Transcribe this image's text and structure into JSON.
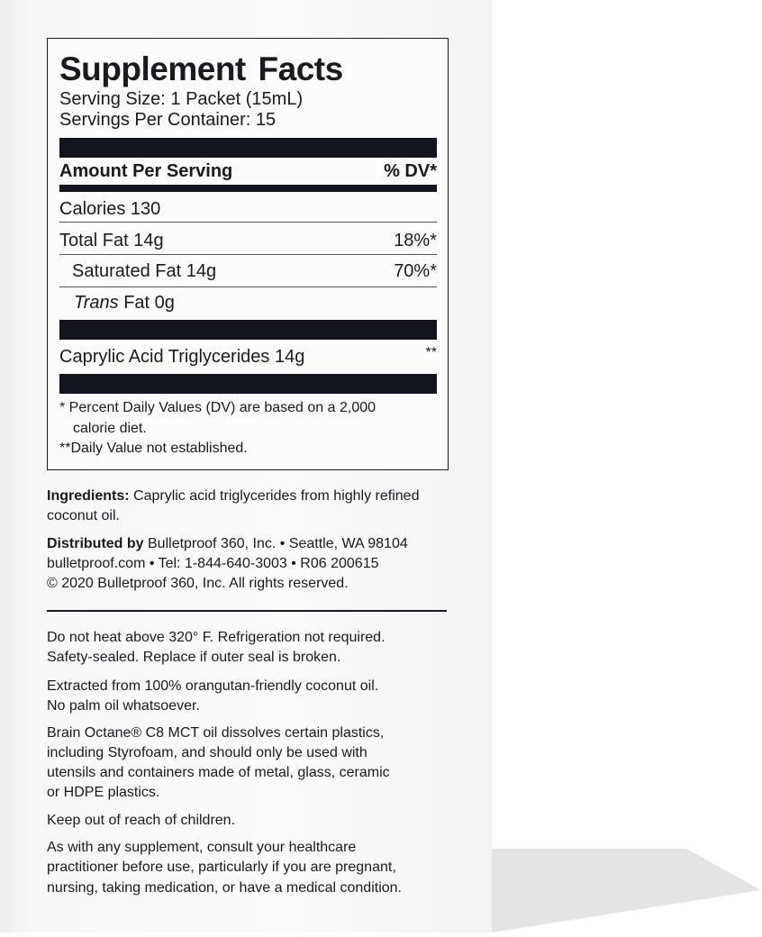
{
  "facts": {
    "title": "Supplement Facts",
    "serving_size": "Serving Size: 1 Packet (15mL)",
    "servings_per_container": "Servings Per Container: 15",
    "amount_header": "Amount Per Serving",
    "dv_header": "% DV*",
    "rows": [
      {
        "label": "Calories 130",
        "dv": ""
      },
      {
        "label": "Total Fat 14g",
        "dv": "18%*"
      },
      {
        "label": "Saturated Fat 14g",
        "dv": "70%*"
      },
      {
        "label_italic": "Trans",
        "label": " Fat 0g",
        "dv": ""
      },
      {
        "label": "Caprylic Acid Triglycerides 14g",
        "dv": "**"
      }
    ],
    "footnote_1a": "*  Percent Daily Values (DV) are based on a 2,000",
    "footnote_1b": "calorie diet.",
    "footnote_2": "**Daily Value not established."
  },
  "ingredients": {
    "label": "Ingredients:",
    "line1": " Caprylic acid triglycerides from highly refined",
    "line2": "coconut oil."
  },
  "distributor": {
    "label": "Distributed by",
    "line1": " Bulletproof 360, Inc. • Seattle, WA 98104",
    "line2": "bulletproof.com • Tel: 1-844-640-3003 • R06 200615",
    "line3": "© 2020 Bulletproof 360, Inc. All rights reserved."
  },
  "notes": [
    [
      "Do not heat above 320° F. Refrigeration not required.",
      "Safety-sealed. Replace if outer seal is broken."
    ],
    [
      "Extracted from 100% orangutan-friendly coconut oil.",
      "No palm oil whatsoever."
    ],
    [
      "Brain Octane® C8 MCT oil dissolves certain plastics,",
      "including Styrofoam, and should only be used with",
      "utensils and containers made of metal, glass, ceramic",
      "or HDPE plastics."
    ],
    [
      "Keep out of reach of children."
    ],
    [
      "As with any supplement, consult your healthcare",
      "practitioner before use, particularly if you are pregnant,",
      "nursing, taking medication, or have a medical condition."
    ]
  ]
}
